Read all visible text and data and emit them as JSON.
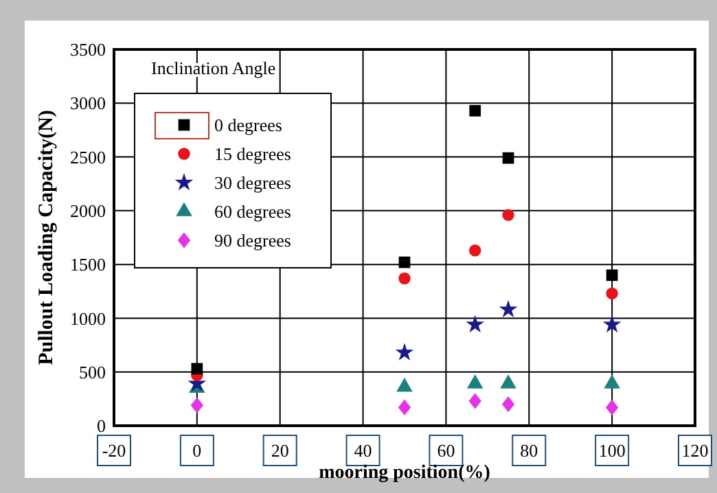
{
  "chart_data": {
    "type": "scatter",
    "xlabel": "mooring position(%)",
    "ylabel": "Pullout Loading Capacity(N)",
    "legend_title": "Inclination Angle",
    "legend": "top left",
    "grid": true,
    "x": [
      0,
      50,
      67,
      75,
      100
    ],
    "xlim": [
      -20,
      120
    ],
    "xticks": [
      -20,
      0,
      20,
      40,
      60,
      80,
      100,
      120
    ],
    "ylim": [
      0,
      3500
    ],
    "yticks": [
      0,
      500,
      1000,
      1500,
      2000,
      2500,
      3000,
      3500
    ],
    "series": [
      {
        "name": "0 degrees",
        "color": "#000000",
        "marker": "square",
        "values": [
          530,
          1520,
          2930,
          2490,
          1400
        ]
      },
      {
        "name": "15 degrees",
        "color": "#e8141a",
        "marker": "circle",
        "values": [
          470,
          1370,
          1630,
          1960,
          1230
        ]
      },
      {
        "name": "30 degrees",
        "color": "#1a1a8c",
        "marker": "star",
        "values": [
          390,
          680,
          940,
          1080,
          940
        ]
      },
      {
        "name": "60 degrees",
        "color": "#1a8080",
        "marker": "triangle",
        "values": [
          350,
          360,
          390,
          390,
          390
        ]
      },
      {
        "name": "90 degrees",
        "color": "#e633e6",
        "marker": "diamond",
        "values": [
          190,
          170,
          230,
          200,
          170
        ]
      }
    ]
  }
}
